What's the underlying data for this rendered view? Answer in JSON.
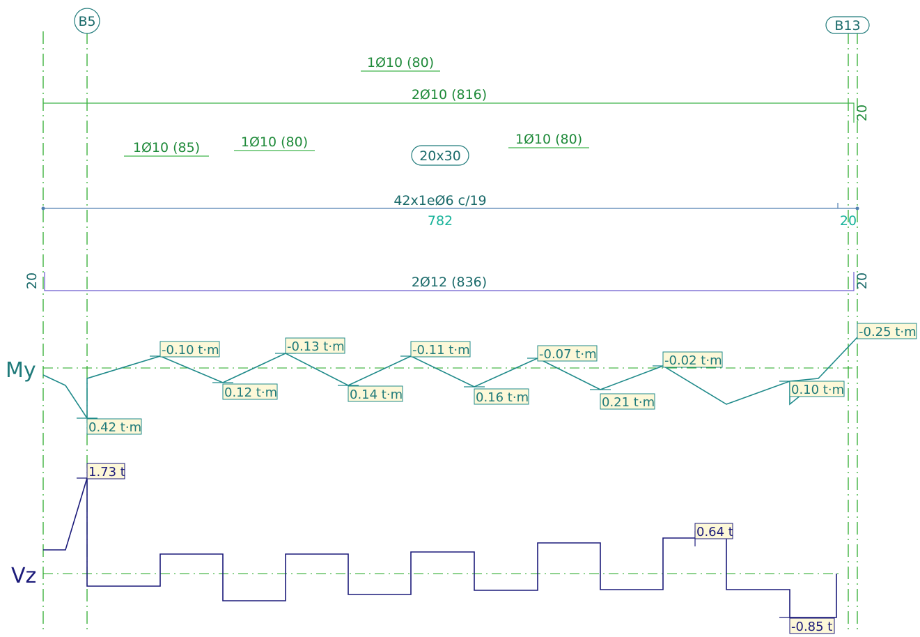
{
  "supports": {
    "left": "B5",
    "right": "B13"
  },
  "beam": {
    "section": "20x30",
    "span_length": "782",
    "support_width": "20",
    "stirrups": "42x1eØ6 c/19"
  },
  "top_rebars": [
    {
      "label": "1Ø10 (80)"
    },
    {
      "label": "2Ø10 (816)"
    },
    {
      "label": "1Ø10 (85)"
    },
    {
      "label": "1Ø10 (80)"
    },
    {
      "label": "1Ø10 (80)"
    }
  ],
  "top_hook": "20",
  "bottom_rebar": {
    "label": "2Ø12 (836)",
    "hook_left": "20",
    "hook_right": "20"
  },
  "moment_diagram": {
    "label": "My",
    "values": [
      {
        "text": "0.42 t·m"
      },
      {
        "text": "-0.10 t·m"
      },
      {
        "text": "0.12 t·m"
      },
      {
        "text": "-0.13 t·m"
      },
      {
        "text": "0.14 t·m"
      },
      {
        "text": "-0.11 t·m"
      },
      {
        "text": "0.16 t·m"
      },
      {
        "text": "-0.07 t·m"
      },
      {
        "text": "0.21 t·m"
      },
      {
        "text": "-0.02 t·m"
      },
      {
        "text": "0.10 t·m"
      },
      {
        "text": "-0.25 t·m"
      }
    ]
  },
  "shear_diagram": {
    "label": "Vz",
    "values": [
      {
        "text": "1.73 t"
      },
      {
        "text": "0.64 t"
      },
      {
        "text": "-0.85 t"
      }
    ]
  },
  "colors": {
    "axis": "#1ea51e",
    "top_rebar": "#3db34a",
    "bottom_rebar": "#6a5acd",
    "stirrup": "#4f7fb0",
    "moment": "#1f8a8a",
    "shear": "#1b1a7a",
    "tag_fill": "#fdf8d8"
  }
}
